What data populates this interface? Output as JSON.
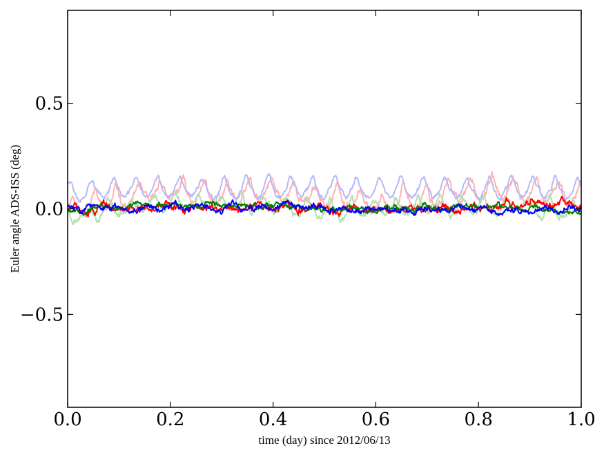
{
  "chart_data": {
    "type": "line",
    "title": "",
    "xlabel": "time (day) since 2012/06/13",
    "ylabel": "Euler angle ADS-ISS (deg)",
    "xlim": [
      0.0,
      1.0
    ],
    "ylim": [
      -0.94,
      0.94
    ],
    "grid": false,
    "legend": "none",
    "x_ticks": [
      {
        "value": 0.0,
        "label": "0.0"
      },
      {
        "value": 0.2,
        "label": "0.2"
      },
      {
        "value": 0.4,
        "label": "0.4"
      },
      {
        "value": 0.6,
        "label": "0.6"
      },
      {
        "value": 0.8,
        "label": "0.8"
      },
      {
        "value": 1.0,
        "label": "1.0"
      }
    ],
    "y_ticks": [
      {
        "value": -0.5,
        "label": "−0.5"
      },
      {
        "value": 0.0,
        "label": "0.0"
      },
      {
        "value": 0.5,
        "label": "0.5"
      }
    ],
    "series": [
      {
        "color": "#ffb3b3",
        "width": 2,
        "opacity": 1.0,
        "period": 0.043,
        "phase": 0.2,
        "base": 0.03,
        "amp": 0.06,
        "noise": 0.018,
        "seed": 11,
        "x": [
          0,
          0.1,
          0.2,
          0.3,
          0.4,
          0.5,
          0.6,
          0.7,
          0.8,
          0.9,
          1.0
        ],
        "y": [
          0.0,
          0.04,
          0.08,
          0.05,
          0.08,
          0.05,
          0.02,
          0.05,
          0.09,
          0.07,
          0.06
        ]
      },
      {
        "color": "#b3e0b3",
        "width": 2,
        "opacity": 1.0,
        "period": 0.043,
        "phase": 2.4,
        "base": -0.01,
        "amp": 0.05,
        "noise": 0.015,
        "seed": 23,
        "x": [
          0,
          0.1,
          0.2,
          0.3,
          0.4,
          0.5,
          0.6,
          0.7,
          0.8,
          0.9,
          1.0
        ],
        "y": [
          -0.03,
          0.0,
          0.03,
          0.02,
          0.01,
          -0.02,
          0.0,
          0.01,
          0.01,
          0.0,
          -0.02
        ]
      },
      {
        "color": "#b8b8f5",
        "width": 2,
        "opacity": 1.0,
        "period": 0.043,
        "phase": 1.0,
        "base": 0.06,
        "amp": 0.06,
        "noise": 0.01,
        "seed": 37,
        "x": [
          0,
          0.1,
          0.2,
          0.3,
          0.4,
          0.5,
          0.6,
          0.7,
          0.8,
          0.9,
          1.0
        ],
        "y": [
          0.08,
          0.09,
          0.09,
          0.09,
          0.09,
          0.09,
          0.09,
          0.09,
          0.09,
          0.09,
          0.08
        ]
      },
      {
        "color": "#ff0000",
        "width": 2,
        "opacity": 1.0,
        "period": 0.06,
        "phase": 0.5,
        "base": 0.0,
        "amp": 0.012,
        "noise": 0.016,
        "seed": 51,
        "x": [
          0,
          0.1,
          0.2,
          0.3,
          0.4,
          0.5,
          0.6,
          0.7,
          0.8,
          0.9,
          1.0
        ],
        "y": [
          -0.01,
          0.0,
          0.01,
          0.0,
          0.0,
          0.0,
          0.0,
          0.0,
          0.0,
          0.03,
          0.01
        ]
      },
      {
        "color": "#008000",
        "width": 2,
        "opacity": 1.0,
        "period": 0.07,
        "phase": 1.7,
        "base": 0.0,
        "amp": 0.01,
        "noise": 0.01,
        "seed": 67,
        "x": [
          0,
          0.1,
          0.2,
          0.3,
          0.4,
          0.5,
          0.6,
          0.7,
          0.8,
          0.9,
          1.0
        ],
        "y": [
          -0.01,
          0.01,
          0.02,
          0.02,
          0.01,
          0.0,
          0.0,
          0.01,
          0.01,
          0.0,
          -0.02
        ]
      },
      {
        "color": "#0000ff",
        "width": 2,
        "opacity": 1.0,
        "period": 0.055,
        "phase": 2.9,
        "base": 0.0,
        "amp": 0.012,
        "noise": 0.012,
        "seed": 83,
        "x": [
          0,
          0.1,
          0.2,
          0.3,
          0.4,
          0.5,
          0.6,
          0.7,
          0.8,
          0.9,
          1.0
        ],
        "y": [
          0.01,
          0.0,
          0.01,
          0.0,
          0.01,
          0.0,
          -0.01,
          0.0,
          0.0,
          -0.01,
          0.0
        ]
      }
    ]
  }
}
